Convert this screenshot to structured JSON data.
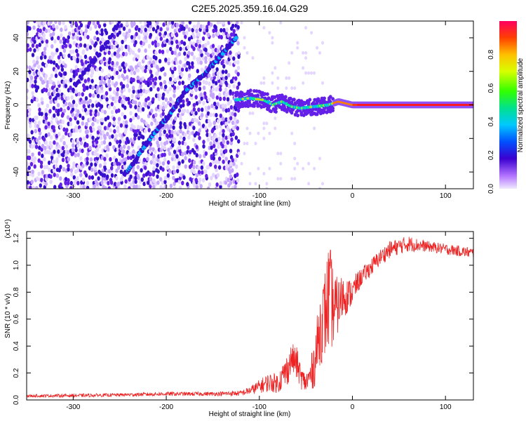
{
  "title": "C2E5.2025.359.16.04.G29",
  "chart_data": [
    {
      "type": "heatmap",
      "xlabel": "Height of straight line (km)",
      "ylabel": "Frequency (Hz)",
      "xlim": [
        -350,
        130
      ],
      "ylim": [
        -50,
        50
      ],
      "xticks": [
        -300,
        -200,
        -100,
        0,
        100
      ],
      "yticks": [
        -40,
        -20,
        0,
        20,
        40
      ],
      "grid": false,
      "colorbar": {
        "label": "Normalized spectral amplitude",
        "range": [
          0,
          1
        ],
        "ticks": [
          0.0,
          0.2,
          0.4,
          0.6,
          0.8
        ]
      },
      "features": {
        "steep_track": [
          [
            -245,
            -42
          ],
          [
            -230,
            -30
          ],
          [
            -210,
            -15
          ],
          [
            -195,
            -5
          ],
          [
            -180,
            8
          ],
          [
            -160,
            18
          ],
          [
            -140,
            30
          ],
          [
            -125,
            40
          ]
        ],
        "faint_track": [
          [
            -300,
            10
          ],
          [
            -280,
            25
          ],
          [
            -260,
            40
          ],
          [
            -250,
            50
          ]
        ],
        "near_zero_band": [
          [
            -125,
            3
          ],
          [
            -110,
            4
          ],
          [
            -95,
            3
          ],
          [
            -85,
            0
          ],
          [
            -75,
            2
          ],
          [
            -65,
            -1
          ],
          [
            -55,
            -2
          ],
          [
            -40,
            -1
          ],
          [
            -25,
            0
          ],
          [
            -15,
            2
          ],
          [
            0,
            0
          ],
          [
            130,
            0
          ]
        ]
      }
    },
    {
      "type": "line",
      "xlabel": "Height of straight line (km)",
      "ylabel": "SNR (10 * v/v)",
      "scale_label": "(x10⁴)",
      "xlim": [
        -350,
        130
      ],
      "ylim": [
        0,
        1.25
      ],
      "xticks": [
        -300,
        -200,
        -100,
        0,
        100
      ],
      "yticks": [
        0.0,
        0.2,
        0.4,
        0.6,
        0.8,
        1.0,
        1.2
      ],
      "grid": false,
      "series": [
        {
          "color": "#ee2222",
          "envelope": [
            [
              -350,
              0.02,
              0.04
            ],
            [
              -300,
              0.02,
              0.045
            ],
            [
              -250,
              0.025,
              0.05
            ],
            [
              -200,
              0.03,
              0.06
            ],
            [
              -150,
              0.03,
              0.06
            ],
            [
              -120,
              0.03,
              0.07
            ],
            [
              -110,
              0.04,
              0.1
            ],
            [
              -100,
              0.05,
              0.15
            ],
            [
              -90,
              0.06,
              0.2
            ],
            [
              -80,
              0.05,
              0.2
            ],
            [
              -70,
              0.1,
              0.35
            ],
            [
              -65,
              0.2,
              0.42
            ],
            [
              -60,
              0.15,
              0.4
            ],
            [
              -55,
              0.08,
              0.25
            ],
            [
              -50,
              0.05,
              0.2
            ],
            [
              -45,
              0.06,
              0.3
            ],
            [
              -40,
              0.1,
              0.5
            ],
            [
              -35,
              0.25,
              0.8
            ],
            [
              -30,
              0.3,
              0.95
            ],
            [
              -25,
              0.35,
              1.2
            ],
            [
              -20,
              0.4,
              0.95
            ],
            [
              -15,
              0.5,
              0.9
            ],
            [
              -10,
              0.6,
              0.95
            ],
            [
              -5,
              0.65,
              0.9
            ],
            [
              0,
              0.7,
              0.9
            ],
            [
              5,
              0.78,
              0.95
            ],
            [
              10,
              0.85,
              0.98
            ],
            [
              20,
              0.92,
              1.05
            ],
            [
              30,
              1.0,
              1.12
            ],
            [
              40,
              1.05,
              1.18
            ],
            [
              50,
              1.08,
              1.2
            ],
            [
              60,
              1.1,
              1.22
            ],
            [
              70,
              1.1,
              1.2
            ],
            [
              80,
              1.1,
              1.18
            ],
            [
              90,
              1.09,
              1.17
            ],
            [
              100,
              1.08,
              1.16
            ],
            [
              110,
              1.07,
              1.15
            ],
            [
              120,
              1.06,
              1.14
            ],
            [
              130,
              1.05,
              1.13
            ]
          ]
        }
      ]
    }
  ]
}
